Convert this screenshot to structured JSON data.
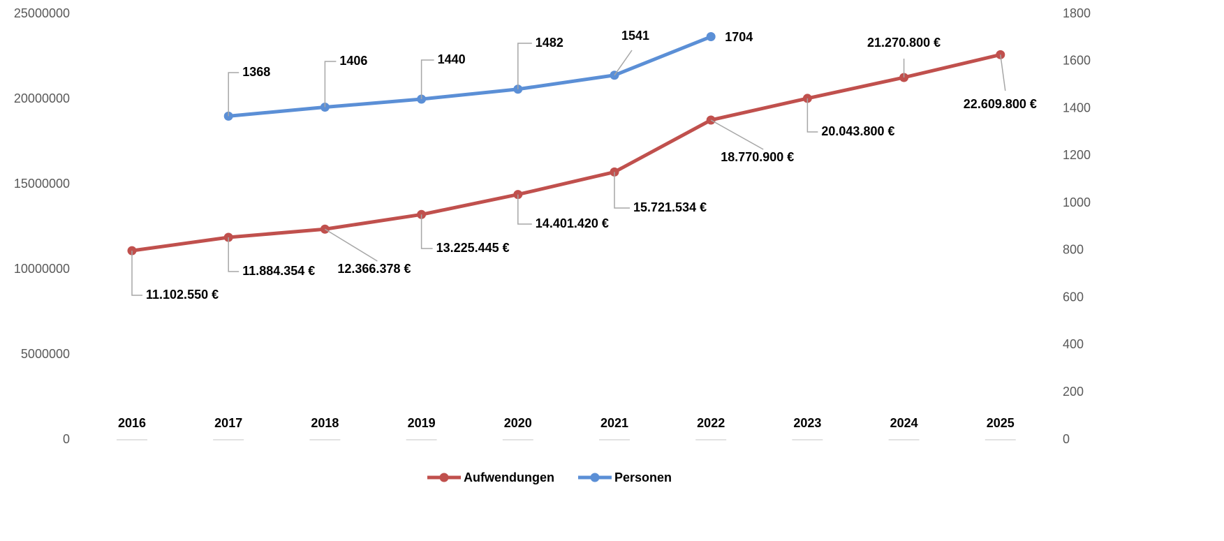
{
  "chart_data": {
    "type": "line",
    "categories": [
      "2016",
      "2017",
      "2018",
      "2019",
      "2020",
      "2021",
      "2022",
      "2023",
      "2024",
      "2025"
    ],
    "series": [
      {
        "name": "Aufwendungen",
        "color": "#c0504d",
        "values": [
          11102550,
          11884354,
          12366378,
          13225445,
          14401420,
          15721534,
          18770900,
          20043800,
          21270800,
          22609800
        ],
        "value_labels": [
          "11.102.550 €",
          "11.884.354 €",
          "12.366.378 €",
          "13.225.445 €",
          "14.401.420 €",
          "15.721.534 €",
          "18.770.900 €",
          "20.043.800 €",
          "21.270.800 €",
          "22.609.800 €"
        ]
      },
      {
        "name": "Personen",
        "color": "#5b8fd6",
        "axis": "y2",
        "values": [
          null,
          1368,
          1406,
          1440,
          1482,
          1541,
          1704,
          null,
          null,
          null
        ]
      }
    ],
    "ylim": [
      0,
      25000000
    ],
    "yticks": [
      0,
      5000000,
      10000000,
      15000000,
      20000000,
      25000000
    ],
    "y2lim": [
      0,
      1800
    ],
    "y2ticks": [
      0,
      200,
      400,
      600,
      800,
      1000,
      1200,
      1400,
      1600,
      1800
    ],
    "grid": false,
    "legend": "bottom"
  }
}
